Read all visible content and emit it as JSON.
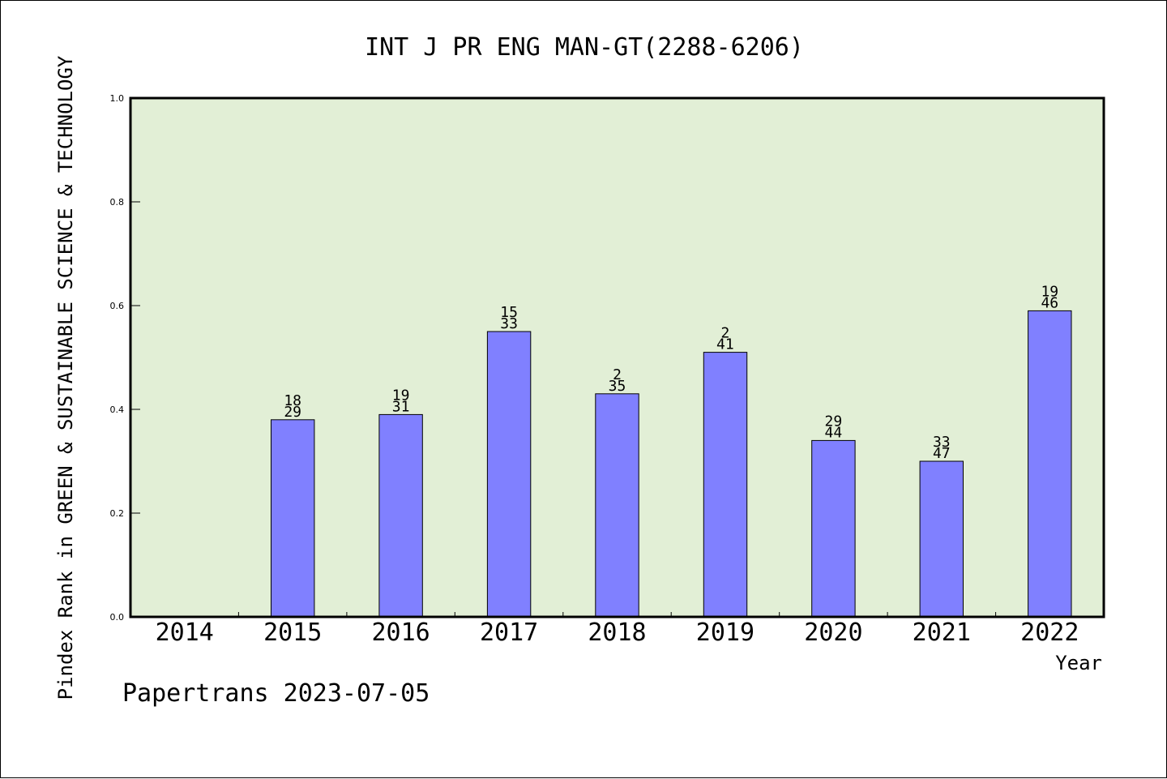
{
  "chart_data": {
    "type": "bar",
    "title": "INT J PR ENG MAN-GT(2288-6206)",
    "ylabel": "Pindex Rank in GREEN & SUSTAINABLE SCIENCE & TECHNOLOGY",
    "xlabel": "Year",
    "footer": "Papertrans 2023-07-05",
    "ylim": [
      0,
      1.0
    ],
    "yticks": [
      "0.0",
      "0.2",
      "0.4",
      "0.6",
      "0.8",
      "1.0"
    ],
    "grid": false,
    "categories": [
      "2014",
      "2015",
      "2016",
      "2017",
      "2018",
      "2019",
      "2020",
      "2021",
      "2022"
    ],
    "values": [
      null,
      0.38,
      0.39,
      0.55,
      0.43,
      0.51,
      0.34,
      0.3,
      0.59
    ],
    "labels_top": [
      "",
      "18",
      "19",
      "15",
      "2",
      "2",
      "29",
      "33",
      "19"
    ],
    "labels_bottom": [
      "",
      "29",
      "31",
      "33",
      "35",
      "41",
      "44",
      "47",
      "46"
    ],
    "colors": {
      "plot_background": "#e2efd6",
      "bar_fill": "#8080ff",
      "bar_stroke": "#000000"
    }
  }
}
